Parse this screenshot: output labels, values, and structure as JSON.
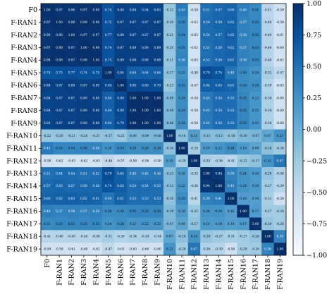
{
  "chart_data": {
    "type": "heatmap",
    "title": "",
    "xlabel": "",
    "ylabel": "",
    "labels": [
      "F0",
      "F-RAN1",
      "F-RAN2",
      "F-RAN3",
      "F-RAN4",
      "F-RAN5",
      "F-RAN6",
      "F-RAN7",
      "F-RAN8",
      "F-RAN9",
      "F-RAN10",
      "F-RAN11",
      "F-RAN12",
      "F-RAN13",
      "F-RAN14",
      "F-RAN15",
      "F-RAN16",
      "F-RAN17",
      "F-RAN18",
      "F-RAN19"
    ],
    "matrix": [
      [
        1.0,
        0.97,
        0.96,
        0.97,
        0.98,
        0.74,
        0.88,
        0.84,
        0.84,
        0.83,
        -0.22,
        0.43,
        -0.58,
        0.51,
        0.57,
        0.6,
        0.4,
        0.31,
        -0.41,
        -0.59
      ],
      [
        0.97,
        1.0,
        0.98,
        0.99,
        0.98,
        0.75,
        0.87,
        0.87,
        0.87,
        0.87,
        -0.2,
        0.35,
        -0.62,
        0.54,
        0.59,
        0.62,
        0.37,
        0.33,
        -0.4,
        -0.59
      ],
      [
        0.96,
        0.98,
        1.0,
        0.97,
        0.97,
        0.77,
        0.89,
        0.87,
        0.87,
        0.87,
        -0.21,
        0.34,
        -0.63,
        0.54,
        0.57,
        0.63,
        0.38,
        0.33,
        -0.4,
        -0.61
      ],
      [
        0.97,
        0.99,
        0.97,
        1.0,
        0.98,
        0.74,
        0.87,
        0.89,
        0.89,
        0.89,
        -0.2,
        0.35,
        -0.62,
        0.51,
        0.58,
        0.62,
        0.37,
        0.33,
        -0.4,
        -0.6
      ],
      [
        0.98,
        0.98,
        0.97,
        0.98,
        1.0,
        0.74,
        0.89,
        0.88,
        0.88,
        0.88,
        -0.21,
        0.36,
        -0.63,
        0.52,
        0.58,
        0.61,
        0.38,
        0.33,
        -0.4,
        -0.62
      ],
      [
        0.74,
        0.75,
        0.77,
        0.74,
        0.74,
        1.0,
        0.84,
        0.64,
        0.64,
        0.64,
        -0.17,
        0.25,
        -0.48,
        0.79,
        0.74,
        0.48,
        0.3,
        0.24,
        -0.31,
        -0.47
      ],
      [
        0.88,
        0.87,
        0.89,
        0.87,
        0.89,
        0.84,
        1.0,
        0.8,
        0.8,
        0.79,
        -0.23,
        0.33,
        -0.57,
        0.64,
        0.65,
        0.61,
        0.3,
        0.28,
        -0.39,
        -0.63
      ],
      [
        0.84,
        0.87,
        0.87,
        0.89,
        0.88,
        0.64,
        0.8,
        1.0,
        1.0,
        1.0,
        -0.09,
        0.29,
        -0.58,
        0.45,
        0.54,
        0.53,
        0.35,
        0.22,
        -0.34,
        -0.6
      ],
      [
        0.84,
        0.87,
        0.87,
        0.89,
        0.88,
        0.64,
        0.8,
        1.0,
        1.0,
        1.0,
        -0.09,
        0.29,
        -0.58,
        0.45,
        0.54,
        0.53,
        0.35,
        0.22,
        -0.34,
        -0.6
      ],
      [
        0.83,
        0.87,
        0.87,
        0.89,
        0.88,
        0.64,
        0.79,
        1.0,
        1.0,
        1.0,
        -0.08,
        0.28,
        -0.58,
        0.45,
        0.54,
        0.53,
        0.35,
        0.22,
        -0.34,
        -0.6
      ],
      [
        -0.22,
        -0.2,
        -0.21,
        -0.2,
        -0.21,
        -0.17,
        -0.23,
        -0.09,
        -0.09,
        -0.08,
        1.0,
        -0.16,
        0.15,
        -0.13,
        -0.13,
        -0.18,
        -0.1,
        -0.07,
        0.07,
        0.23
      ],
      [
        0.43,
        0.35,
        0.34,
        0.35,
        0.36,
        0.25,
        0.33,
        0.29,
        0.29,
        0.28,
        -0.16,
        1.0,
        -0.29,
        0.19,
        0.22,
        0.29,
        0.18,
        0.09,
        -0.16,
        -0.26
      ],
      [
        -0.58,
        -0.62,
        -0.63,
        -0.62,
        -0.63,
        -0.48,
        -0.57,
        -0.58,
        -0.58,
        -0.58,
        0.15,
        -0.29,
        1.0,
        -0.33,
        -0.36,
        -0.41,
        -0.22,
        -0.17,
        0.24,
        0.47
      ],
      [
        0.51,
        0.54,
        0.54,
        0.51,
        0.52,
        0.79,
        0.64,
        0.45,
        0.45,
        0.44,
        -0.13,
        0.19,
        -0.33,
        1.0,
        0.94,
        0.39,
        0.24,
        0.18,
        -0.2,
        -0.36
      ],
      [
        0.57,
        0.59,
        0.57,
        0.58,
        0.58,
        0.74,
        0.65,
        0.54,
        0.54,
        0.53,
        -0.13,
        0.22,
        -0.36,
        0.94,
        1.0,
        0.41,
        0.24,
        0.18,
        -0.27,
        -0.39
      ],
      [
        0.6,
        0.62,
        0.63,
        0.62,
        0.61,
        0.48,
        0.61,
        0.53,
        0.53,
        0.53,
        -0.18,
        0.29,
        -0.41,
        0.39,
        0.41,
        1.0,
        0.16,
        0.14,
        -0.31,
        -0.58
      ],
      [
        0.4,
        0.37,
        0.38,
        0.37,
        0.38,
        0.3,
        0.3,
        0.35,
        0.35,
        0.35,
        -0.1,
        0.18,
        -0.22,
        0.24,
        0.24,
        0.16,
        1.0,
        0.17,
        -0.27,
        -0.28
      ],
      [
        0.31,
        0.33,
        0.33,
        0.33,
        0.33,
        0.24,
        0.28,
        0.22,
        0.22,
        0.22,
        -0.07,
        0.09,
        -0.17,
        0.18,
        0.18,
        0.14,
        0.17,
        1.0,
        -0.2,
        -0.26
      ],
      [
        -0.41,
        -0.4,
        -0.4,
        -0.4,
        -0.4,
        -0.31,
        -0.39,
        -0.34,
        -0.34,
        -0.34,
        0.07,
        -0.16,
        0.24,
        -0.2,
        -0.27,
        -0.31,
        -0.27,
        -0.2,
        1.0,
        0.36
      ],
      [
        -0.59,
        -0.59,
        -0.61,
        -0.6,
        -0.62,
        -0.47,
        -0.63,
        -0.6,
        -0.6,
        -0.6,
        0.23,
        -0.26,
        0.47,
        -0.36,
        -0.39,
        -0.58,
        -0.28,
        -0.26,
        0.36,
        1.0
      ]
    ],
    "colorbar": {
      "min": -1.0,
      "max": 1.0,
      "ticks": [
        1.0,
        0.75,
        0.5,
        0.25,
        0.0,
        -0.25,
        -0.5,
        -0.75,
        -1.0
      ],
      "tick_labels": [
        "1.00",
        "0.75",
        "0.50",
        "0.25",
        "0.00",
        "−0.25",
        "−0.50",
        "−0.75",
        "−1.00"
      ]
    },
    "colormap": "Blues",
    "grid": false,
    "legend": "colorbar-right"
  }
}
